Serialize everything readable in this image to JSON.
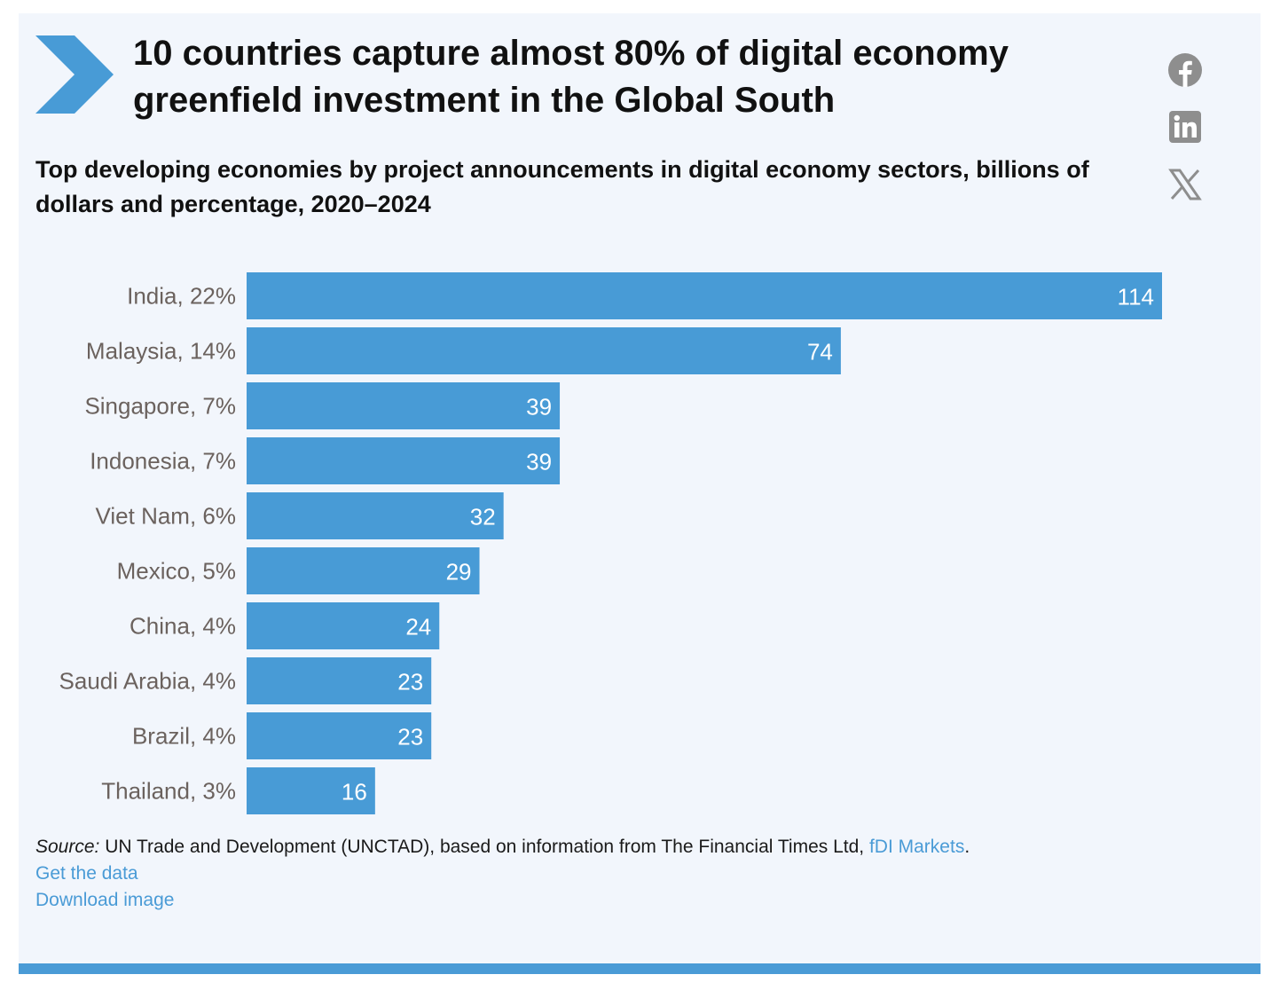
{
  "header": {
    "title": "10 countries capture almost 80% of digital economy greenfield investment in the Global South",
    "subtitle": "Top developing economies by project announcements in digital economy sectors, billions of dollars and percentage, 2020–2024"
  },
  "share": {
    "icons": [
      "facebook-icon",
      "linkedin-icon",
      "x-icon"
    ]
  },
  "colors": {
    "accent": "#489bd6",
    "background": "#f2f6fc",
    "category_text": "#6b625e",
    "link": "#4a9bd6"
  },
  "chart_data": {
    "type": "bar",
    "orientation": "horizontal",
    "categories": [
      "India, 22%",
      "Malaysia, 14%",
      "Singapore, 7%",
      "Indonesia, 7%",
      "Viet Nam, 6%",
      "Mexico, 5%",
      "China, 4%",
      "Saudi Arabia, 4%",
      "Brazil, 4%",
      "Thailand, 3%"
    ],
    "values": [
      114,
      74,
      39,
      39,
      32,
      29,
      24,
      23,
      23,
      16
    ],
    "xlim": [
      0,
      114
    ],
    "grid": false,
    "data_labels": true
  },
  "footer": {
    "source_label": "Source:",
    "source_text": " UN Trade and Development (UNCTAD), based on information from The Financial Times Ltd, ",
    "source_link": "fDI Markets",
    "source_end": ".",
    "get_data": "Get the data",
    "download_image": "Download image"
  }
}
